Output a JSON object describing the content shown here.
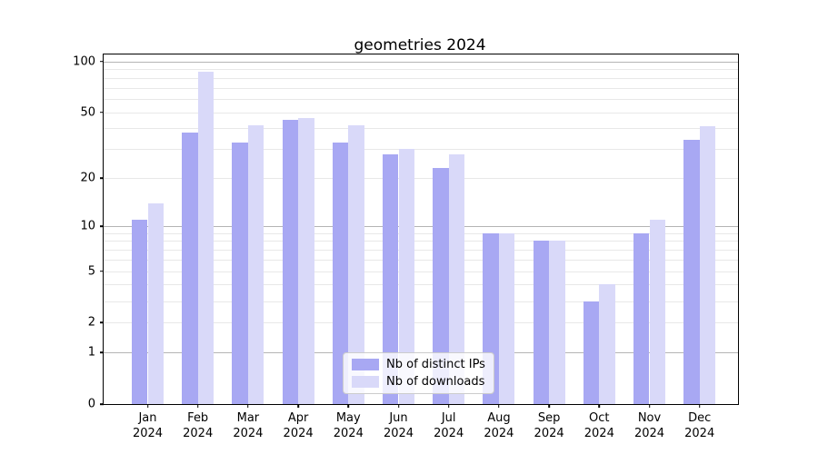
{
  "title": "geometries 2024",
  "colors": {
    "ips_bar": "#a8a8f3",
    "downloads_bar": "#d9d9f9",
    "major_grid": "#b4b4b4",
    "minor_grid": "#e8e8e8",
    "axis": "#000000"
  },
  "legend": {
    "items": [
      {
        "label": "Nb of distinct IPs",
        "color": "#a8a8f3"
      },
      {
        "label": "Nb of downloads",
        "color": "#d9d9f9"
      }
    ]
  },
  "chart_data": {
    "type": "bar",
    "title": "geometries 2024",
    "categories": [
      "Jan\n2024",
      "Feb\n2024",
      "Mar\n2024",
      "Apr\n2024",
      "May\n2024",
      "Jun\n2024",
      "Jul\n2024",
      "Aug\n2024",
      "Sep\n2024",
      "Oct\n2024",
      "Nov\n2024",
      "Dec\n2024"
    ],
    "series": [
      {
        "name": "Nb of distinct IPs",
        "color": "#a8a8f3",
        "values": [
          11,
          38,
          33,
          45,
          33,
          28,
          23,
          9,
          8,
          3,
          9,
          34
        ]
      },
      {
        "name": "Nb of downloads",
        "color": "#d9d9f9",
        "values": [
          14,
          87,
          42,
          46,
          42,
          30,
          28,
          9,
          8,
          4,
          11,
          41
        ]
      }
    ],
    "xlabel": "",
    "ylabel": "",
    "yscale": "log1p",
    "ylim": [
      0,
      110
    ],
    "yticks_labeled": [
      0,
      1,
      2,
      5,
      10,
      20,
      50,
      100
    ],
    "yticks_major_grid": [
      1,
      10,
      100
    ],
    "yticks_minor_grid": [
      2,
      3,
      4,
      5,
      6,
      7,
      8,
      9,
      20,
      30,
      40,
      50,
      60,
      70,
      80,
      90
    ],
    "grid": "horizontal",
    "legend_position": "lower center"
  }
}
